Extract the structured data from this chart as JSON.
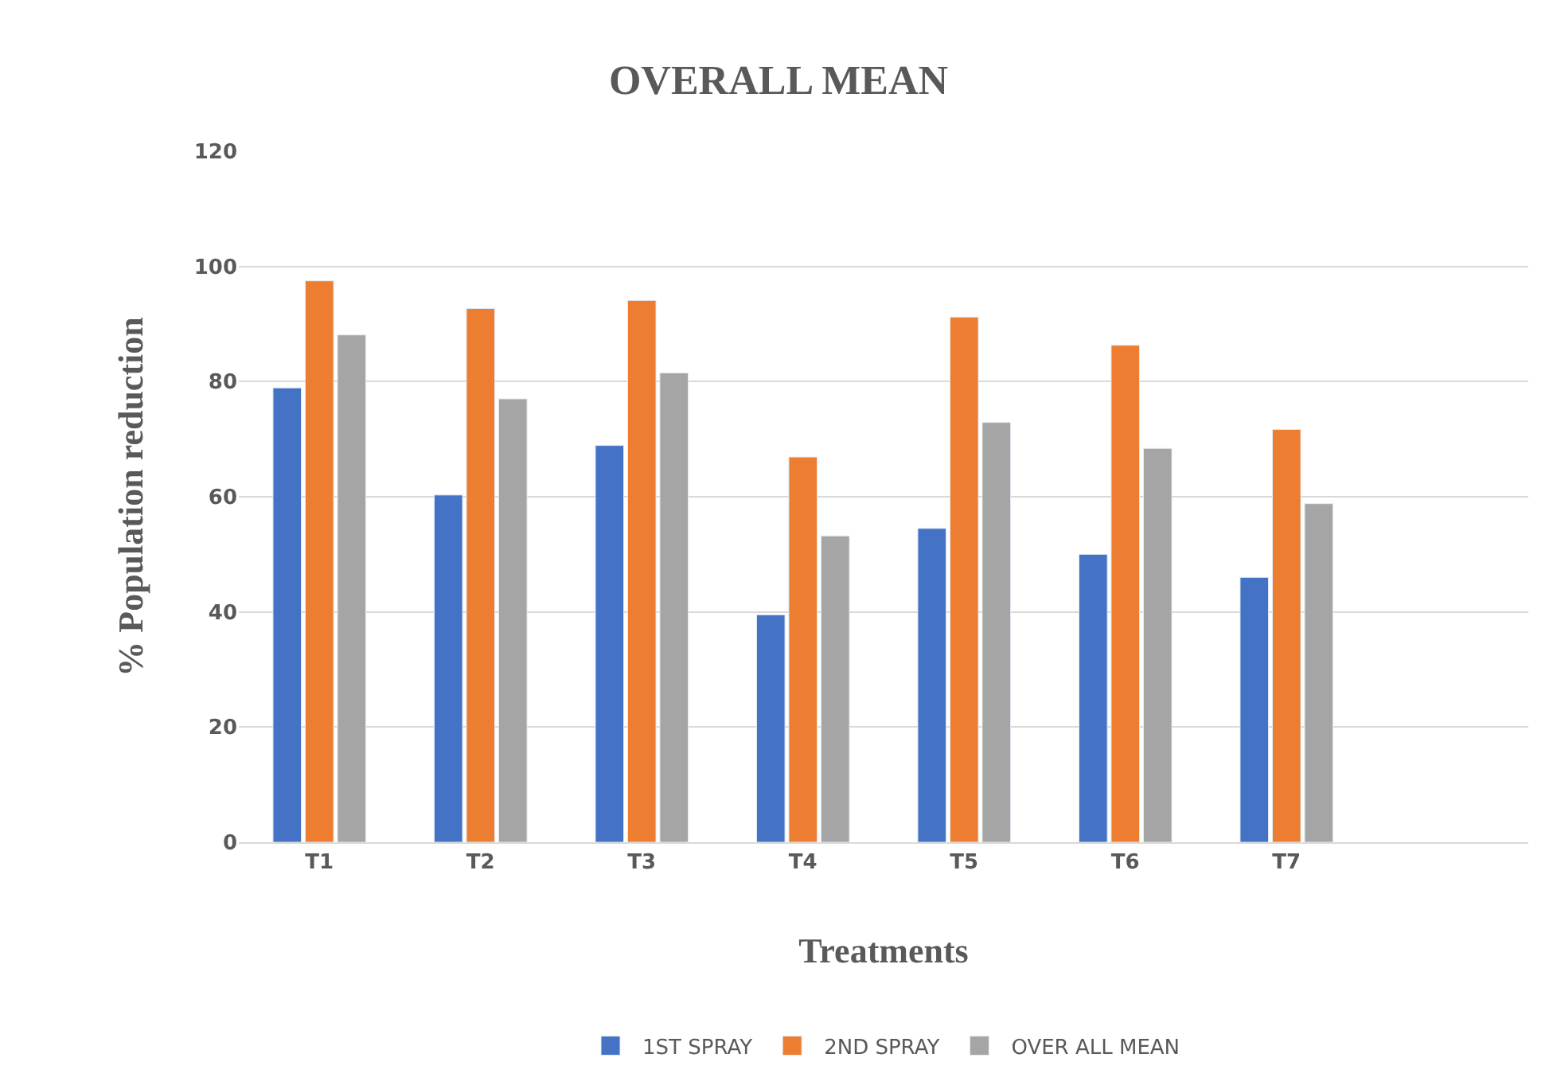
{
  "chart_data": {
    "type": "bar",
    "title": "OVERALL MEAN",
    "xlabel": "Treatments",
    "ylabel": "% Population reduction",
    "categories": [
      "T1",
      "T2",
      "T3",
      "T4",
      "T5",
      "T6",
      "T7",
      null
    ],
    "series": [
      {
        "name": "1ST SPRAY",
        "color": "#4472c4",
        "values": [
          78.9,
          60.3,
          68.9,
          39.5,
          54.5,
          50.0,
          46.0,
          null
        ]
      },
      {
        "name": "2ND SPRAY",
        "color": "#ed7d31",
        "values": [
          97.5,
          92.7,
          94.1,
          66.9,
          91.2,
          86.3,
          71.7,
          null
        ]
      },
      {
        "name": "OVER ALL MEAN",
        "color": "#a5a5a5",
        "values": [
          88.1,
          77.0,
          81.5,
          53.2,
          72.9,
          68.4,
          58.8,
          null
        ]
      }
    ],
    "ylim": [
      0,
      120
    ],
    "yticks": [
      0,
      20,
      40,
      60,
      80,
      100,
      120
    ],
    "grid": "y",
    "legend": "bottom"
  }
}
